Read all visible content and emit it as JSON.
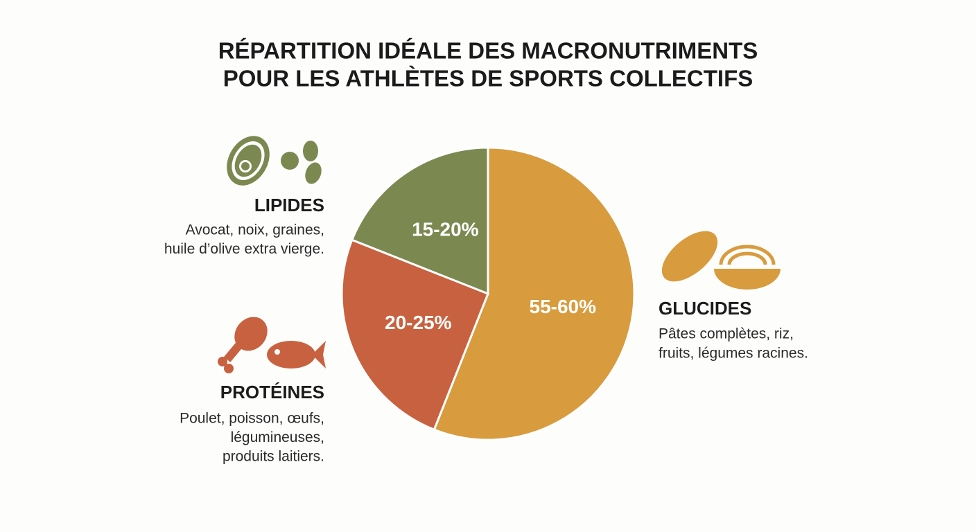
{
  "chart_data": {
    "type": "pie",
    "title": [
      "RÉPARTITION IDÉALE DES MACRONUTRIMENTS",
      "POUR LES ATHLÈTES DE SPORTS COLLECTIFS"
    ],
    "categories": [
      "GLUCIDES",
      "PROTÉINES",
      "LIPIDES"
    ],
    "values": [
      56,
      25,
      19
    ],
    "value_labels": [
      "55-60%",
      "20-25%",
      "15-20%"
    ],
    "colors": [
      "#d89b3d",
      "#c8613f",
      "#7b8951"
    ],
    "descriptions": [
      [
        "Pâtes complètes, riz,",
        "fruits, légumes racines."
      ],
      [
        "Poulet, poisson, œufs,",
        "légumineuses,",
        "produits laitiers."
      ],
      [
        "Avocat, noix, graines,",
        "huile d’olive extra vierge."
      ]
    ]
  }
}
